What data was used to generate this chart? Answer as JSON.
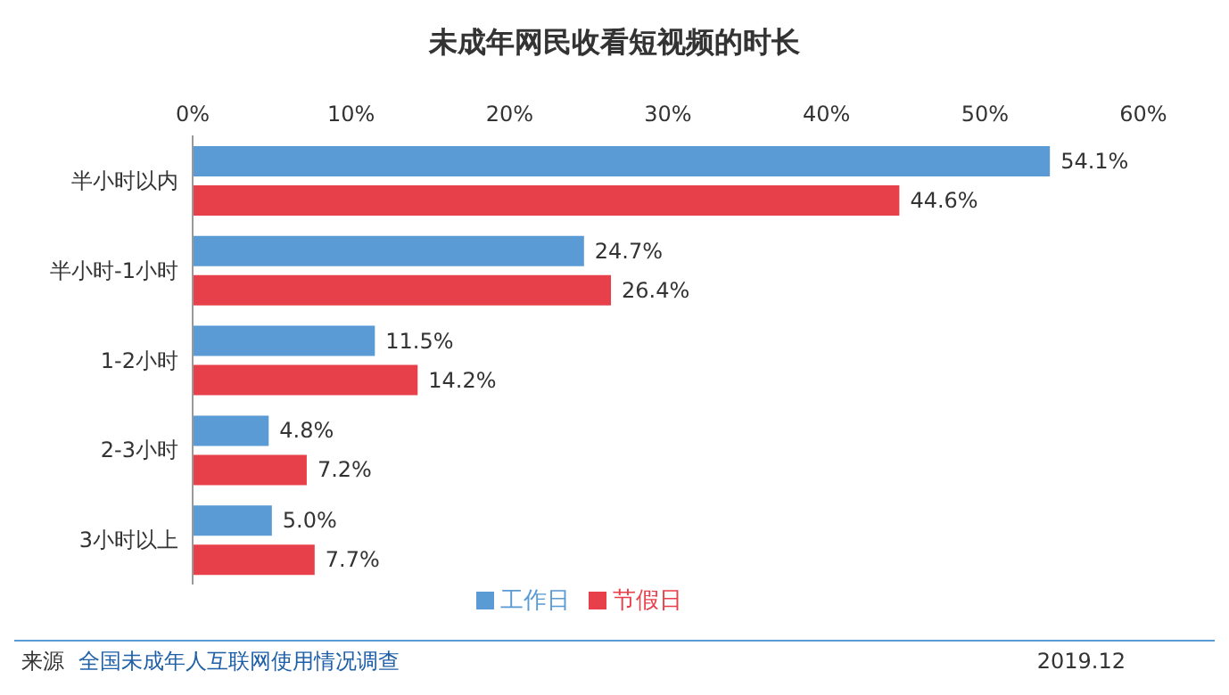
{
  "chart_data": {
    "type": "bar",
    "orientation": "horizontal",
    "title": "未成年网民收看短视频的时长",
    "categories": [
      "半小时以内",
      "半小时-1小时",
      "1-2小时",
      "2-3小时",
      "3小时以上"
    ],
    "series": [
      {
        "name": "工作日",
        "color": "#5b9bd5",
        "values": [
          54.1,
          24.7,
          11.5,
          4.8,
          5.0
        ],
        "value_labels": [
          "54.1%",
          "24.7%",
          "11.5%",
          "4.8%",
          "5.0%"
        ]
      },
      {
        "name": "节假日",
        "color": "#e8404a",
        "values": [
          44.6,
          26.4,
          14.2,
          7.2,
          7.7
        ],
        "value_labels": [
          "44.6%",
          "26.4%",
          "14.2%",
          "7.2%",
          "7.7%"
        ]
      }
    ],
    "xlim": [
      0,
      60
    ],
    "xticks": [
      {
        "value": 0,
        "label": "0%"
      },
      {
        "value": 10,
        "label": "10%"
      },
      {
        "value": 20,
        "label": "20%"
      },
      {
        "value": 30,
        "label": "30%"
      },
      {
        "value": 40,
        "label": "40%"
      },
      {
        "value": 50,
        "label": "50%"
      },
      {
        "value": 60,
        "label": "60%"
      }
    ],
    "legend": "bottom",
    "grid": false,
    "annotations": [
      "来源",
      "全国未成年人互联网使用情况调查",
      "2019.12"
    ]
  }
}
